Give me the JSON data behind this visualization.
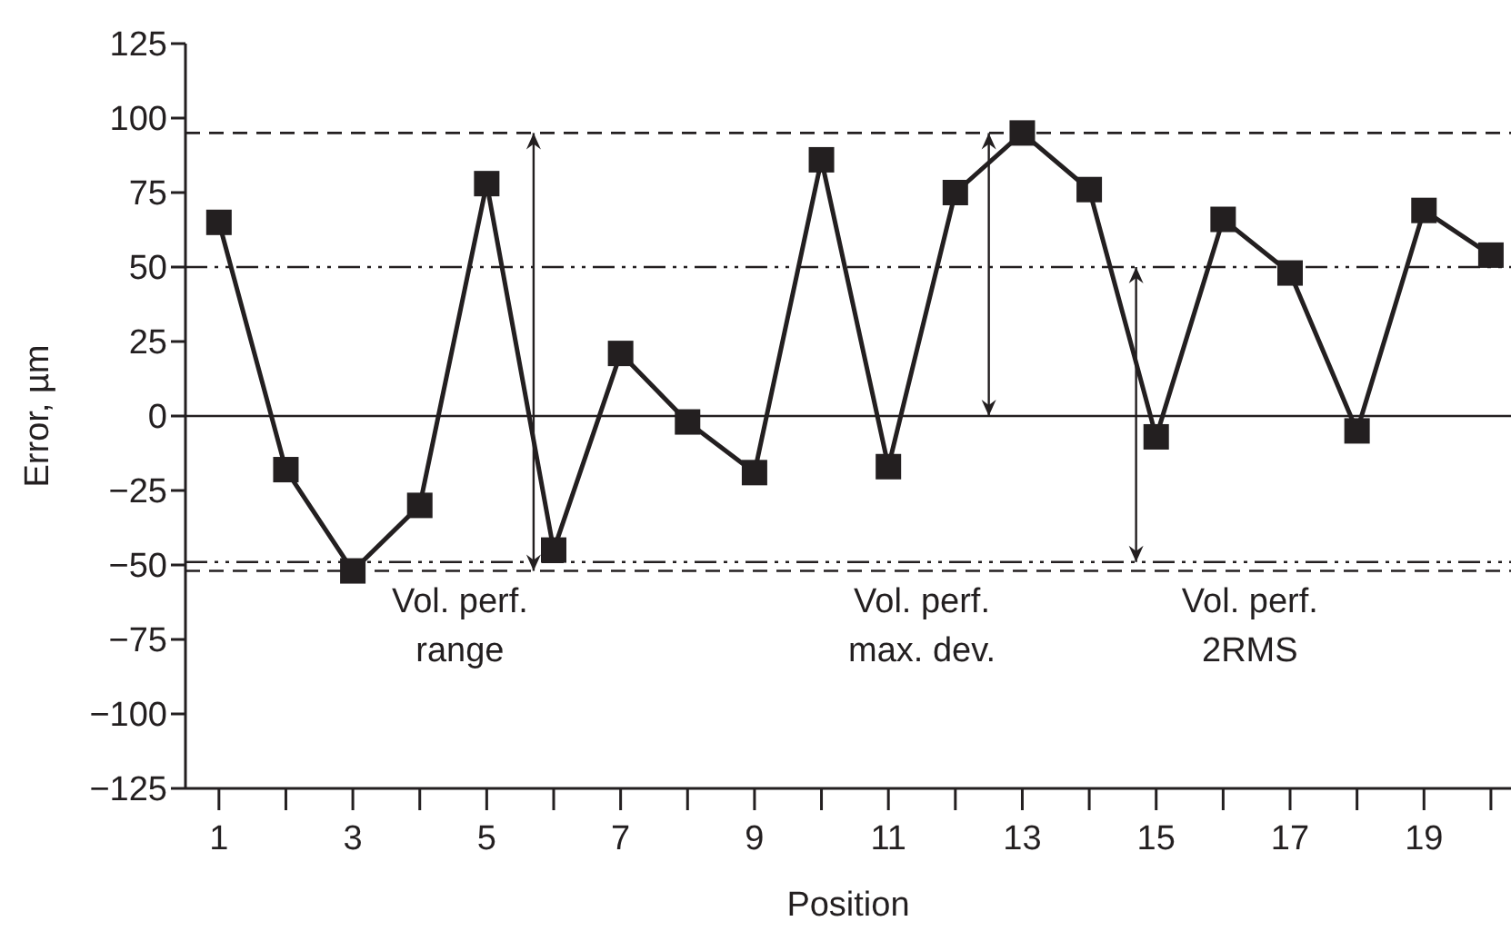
{
  "chart_data": {
    "type": "line",
    "xlabel": "Position",
    "ylabel": "Error, µm",
    "x": [
      1,
      2,
      3,
      4,
      5,
      6,
      7,
      8,
      9,
      10,
      11,
      12,
      13,
      14,
      15,
      16,
      17,
      18,
      19,
      20
    ],
    "series": [
      {
        "color": "#231f20",
        "values": [
          65,
          -18,
          -52,
          -30,
          78,
          -45,
          21,
          -2,
          -19,
          86,
          -17,
          75,
          95,
          76,
          -7,
          66,
          48,
          -5,
          69,
          54
        ]
      }
    ],
    "xlim": [
      0.5,
      20.3
    ],
    "xticks": [
      1,
      {
        "value": 2,
        "label": null
      },
      3,
      {
        "value": 4,
        "label": null
      },
      5,
      {
        "value": 6,
        "label": null
      },
      7,
      {
        "value": 8,
        "label": null
      },
      9,
      {
        "value": 10,
        "label": null
      },
      11,
      {
        "value": 12,
        "label": null
      },
      13,
      {
        "value": 14,
        "label": null
      },
      15,
      {
        "value": 16,
        "label": null
      },
      17,
      {
        "value": 18,
        "label": null
      },
      19,
      {
        "value": 20,
        "label": null
      }
    ],
    "ylim": [
      -125,
      125
    ],
    "yticks": [
      {
        "value": -125,
        "label": "−125"
      },
      {
        "value": -100,
        "label": "−100"
      },
      {
        "value": -75,
        "label": "−75"
      },
      {
        "value": -50,
        "label": "−50"
      },
      {
        "value": -25,
        "label": "−25"
      },
      0,
      25,
      50,
      75,
      100,
      125
    ],
    "ref_lines": [
      {
        "axis": "y",
        "value": 95,
        "line_style": "dashed"
      },
      {
        "axis": "y",
        "value": 50,
        "line_style": "dashdot"
      },
      {
        "axis": "y",
        "value": 0,
        "line_style": "solid"
      },
      {
        "axis": "y",
        "value": -49,
        "line_style": "dashdot"
      },
      {
        "axis": "y",
        "value": -52,
        "line_style": "dashed"
      }
    ],
    "annotations": [
      {
        "text": "Vol. perf.\nrange",
        "x": 5.7,
        "y": 95
      },
      "Vol. perf.\nmax. dev.",
      "Vol. perf.\n2RMS"
    ],
    "marker": "square",
    "line_style": "solid"
  }
}
